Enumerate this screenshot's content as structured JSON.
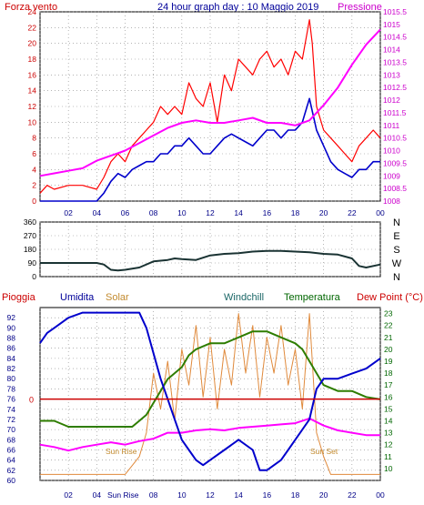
{
  "header": {
    "left_label": "Forza vento",
    "title": "24 hour graph day : 10 Maggio 2019",
    "right_label": "Pressione"
  },
  "legend2": {
    "pioggia": "Pioggia",
    "umidita": "Umidita",
    "solar": "Solar",
    "windchill": "Windchill",
    "temperatura": "Temperatura",
    "dew_point": "Dew Point (°C)"
  },
  "annotations": {
    "sun_rise": "Sun Rise",
    "sun_set": "Sun Set"
  },
  "colors": {
    "wind_gust": "#ff0000",
    "wind_avg": "#0000cc",
    "pressure": "#ff00ff",
    "direction": "#1a3333",
    "humidity": "#0000cc",
    "solar": "#e08a3c",
    "temperature": "#2e7d00",
    "dew_point": "#ff00ff",
    "rain": "#cc0000"
  },
  "chart_data": [
    {
      "type": "line",
      "xlim": [
        0,
        24
      ],
      "x_ticks": [
        "02",
        "04",
        "06",
        "08",
        "10",
        "12",
        "14",
        "16",
        "18",
        "20",
        "22",
        "00"
      ],
      "y_left": {
        "ylim": [
          0,
          24
        ],
        "ticks": [
          "0",
          "2",
          "4",
          "6",
          "8",
          "10",
          "12",
          "14",
          "16",
          "18",
          "20",
          "22",
          "24"
        ]
      },
      "y_right": {
        "ylim": [
          1008,
          1015.5
        ],
        "ticks": [
          "1008",
          "1008.5",
          "1009",
          "1009.5",
          "1010",
          "1010.5",
          "1011",
          "1011.5",
          "1012",
          "1012.5",
          "1013",
          "1013.5",
          "1014",
          "1014.5",
          "1015",
          "1015.5"
        ]
      },
      "grid": true,
      "series": [
        {
          "key": "wind_gust",
          "axis": "left",
          "x": [
            0,
            0.5,
            1,
            2,
            3,
            4,
            4.5,
            5,
            5.5,
            6,
            6.5,
            7,
            7.5,
            8,
            8.5,
            9,
            9.5,
            10,
            10.5,
            11,
            11.5,
            12,
            12.5,
            13,
            13.5,
            14,
            14.5,
            15,
            15.5,
            16,
            16.5,
            17,
            17.5,
            18,
            18.5,
            19,
            19.2,
            19.5,
            20,
            20.5,
            21,
            21.5,
            22,
            22.5,
            23,
            23.5,
            24
          ],
          "values": [
            1,
            2,
            1.5,
            2,
            2,
            1.5,
            3,
            5,
            6,
            5,
            7,
            8,
            9,
            10,
            12,
            11,
            12,
            11,
            15,
            13,
            12,
            15,
            10,
            16,
            14,
            18,
            17,
            16,
            18,
            19,
            17,
            18,
            16,
            19,
            18,
            23,
            20,
            12,
            9,
            8,
            7,
            6,
            5,
            7,
            8,
            9,
            8
          ]
        },
        {
          "key": "wind_avg",
          "axis": "left",
          "x": [
            0,
            1,
            2,
            3,
            4,
            4.5,
            5,
            5.5,
            6,
            6.5,
            7,
            7.5,
            8,
            8.5,
            9,
            9.5,
            10,
            10.5,
            11,
            11.5,
            12,
            12.5,
            13,
            13.5,
            14,
            14.5,
            15,
            15.5,
            16,
            16.5,
            17,
            17.5,
            18,
            18.5,
            19,
            19.5,
            20,
            20.5,
            21,
            21.5,
            22,
            22.5,
            23,
            23.5,
            24
          ],
          "values": [
            0,
            0,
            0,
            0,
            0,
            1,
            2.5,
            3.5,
            3,
            4,
            4.5,
            5,
            5,
            6,
            6,
            7,
            7,
            8,
            7,
            6,
            6,
            7,
            8,
            8.5,
            8,
            7.5,
            7,
            8,
            9,
            9,
            8,
            9,
            9,
            10,
            13,
            9,
            7,
            5,
            4,
            3.5,
            3,
            4,
            4,
            5,
            5
          ]
        },
        {
          "key": "pressure",
          "axis": "right",
          "x": [
            0,
            1,
            2,
            3,
            4,
            5,
            6,
            7,
            8,
            9,
            10,
            11,
            12,
            13,
            14,
            15,
            16,
            17,
            18,
            19,
            20,
            21,
            22,
            23,
            24
          ],
          "values": [
            1009,
            1009.1,
            1009.2,
            1009.3,
            1009.6,
            1009.8,
            1010,
            1010.3,
            1010.6,
            1010.9,
            1011.1,
            1011.2,
            1011.1,
            1011.1,
            1011.2,
            1011.3,
            1011.1,
            1011.1,
            1011.0,
            1011.2,
            1011.8,
            1012.5,
            1013.4,
            1014.2,
            1014.8
          ]
        }
      ]
    },
    {
      "type": "line",
      "xlim": [
        0,
        24
      ],
      "y_left": {
        "ylim": [
          0,
          360
        ],
        "ticks": [
          "0",
          "90",
          "180",
          "270",
          "360"
        ]
      },
      "y_right_labels": [
        "N",
        "W",
        "S",
        "E",
        "N"
      ],
      "grid": true,
      "series": [
        {
          "key": "direction",
          "x": [
            0,
            1,
            2,
            3,
            4,
            4.5,
            5,
            5.5,
            6,
            7,
            8,
            9,
            9.5,
            10,
            11,
            12,
            13,
            14,
            15,
            16,
            17,
            18,
            19,
            20,
            21,
            22,
            22.5,
            23,
            24
          ],
          "values": [
            90,
            90,
            90,
            90,
            90,
            80,
            45,
            40,
            45,
            60,
            100,
            110,
            120,
            115,
            110,
            140,
            150,
            155,
            165,
            170,
            170,
            165,
            160,
            150,
            145,
            120,
            70,
            60,
            80
          ]
        }
      ]
    },
    {
      "type": "line",
      "xlim": [
        0,
        24
      ],
      "y_left": {
        "ylim": [
          60,
          94
        ],
        "ticks": [
          "60",
          "62",
          "64",
          "66",
          "68",
          "70",
          "72",
          "74",
          "76",
          "78",
          "80",
          "82",
          "84",
          "86",
          "88",
          "90",
          "92"
        ]
      },
      "y_right": {
        "ylim": [
          9,
          23.5
        ],
        "ticks": [
          "10",
          "11",
          "12",
          "13",
          "14",
          "15",
          "16",
          "17",
          "18",
          "19",
          "20",
          "21",
          "22",
          "23"
        ]
      },
      "rain_level_label": "0",
      "grid": true,
      "series": [
        {
          "key": "humidity",
          "axis": "left",
          "x": [
            0,
            0.5,
            1,
            2,
            3,
            4,
            5,
            6,
            7,
            7.5,
            8,
            8.5,
            9,
            9.5,
            10,
            10.5,
            11,
            11.5,
            12,
            13,
            14,
            15,
            15.5,
            16,
            17,
            17.5,
            18,
            19,
            19.5,
            20,
            21,
            22,
            23,
            24
          ],
          "values": [
            87,
            89,
            90,
            92,
            93,
            93,
            93,
            93,
            93,
            90,
            85,
            80,
            76,
            72,
            68,
            66,
            64,
            63,
            64,
            66,
            68,
            66,
            62,
            62,
            64,
            66,
            68,
            72,
            78,
            80,
            80,
            81,
            82,
            84
          ]
        },
        {
          "key": "solar",
          "axis": "right",
          "x": [
            0,
            6,
            7,
            7.5,
            8,
            8.5,
            9,
            9.5,
            10,
            10.5,
            11,
            11.5,
            12,
            12.5,
            13,
            13.5,
            14,
            14.5,
            15,
            15.5,
            16,
            16.5,
            17,
            17.5,
            18,
            18.5,
            19,
            19.5,
            20,
            20.5,
            21,
            24
          ],
          "values": [
            9.5,
            9.5,
            11,
            13,
            18,
            15,
            19,
            14,
            20,
            17,
            22,
            16,
            21,
            15,
            20,
            17,
            23,
            18,
            22,
            16,
            21,
            18,
            22,
            17,
            20,
            15,
            23,
            13,
            11,
            9.5,
            9.5,
            9.5
          ]
        },
        {
          "key": "temperature",
          "axis": "right",
          "x": [
            0,
            1,
            2,
            3,
            4,
            5,
            6,
            6.5,
            7,
            7.5,
            8,
            8.5,
            9,
            9.5,
            10,
            10.5,
            11,
            12,
            13,
            14,
            15,
            16,
            17,
            18,
            18.5,
            19,
            19.5,
            20,
            21,
            22,
            23,
            24
          ],
          "values": [
            14,
            14,
            13.5,
            13.5,
            13.5,
            13.5,
            13.5,
            13.5,
            14,
            14.5,
            15.5,
            16.5,
            17.5,
            18,
            18.5,
            19.5,
            20,
            20.5,
            20.5,
            21,
            21.5,
            21.5,
            21,
            20.5,
            20,
            19,
            18,
            17,
            16.5,
            16.5,
            16,
            15.8
          ]
        },
        {
          "key": "dew_point",
          "axis": "right",
          "x": [
            0,
            1,
            2,
            3,
            4,
            5,
            6,
            7,
            8,
            9,
            10,
            11,
            12,
            13,
            14,
            15,
            16,
            17,
            18,
            19,
            20,
            21,
            22,
            23,
            24
          ],
          "values": [
            12,
            11.8,
            11.5,
            11.8,
            12,
            12.2,
            12,
            12.3,
            12.5,
            13,
            13,
            13.2,
            13.3,
            13.2,
            13.4,
            13.5,
            13.6,
            13.7,
            13.8,
            14.2,
            13.6,
            13.2,
            13,
            12.8,
            12.8
          ]
        }
      ]
    }
  ]
}
